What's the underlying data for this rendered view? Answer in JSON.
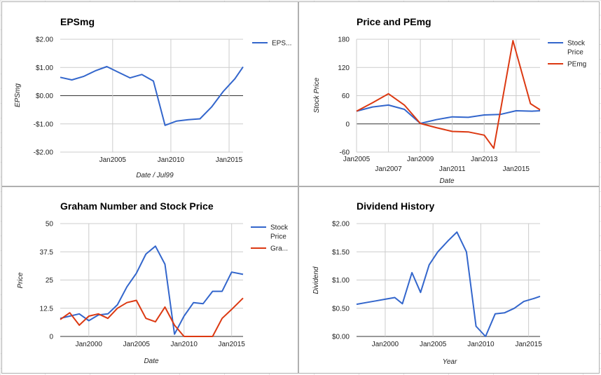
{
  "chart_data": [
    {
      "type": "line",
      "title": "EPSmg",
      "xlabel": "Date / Jul99",
      "ylabel": "EPSmg",
      "ylim": [
        -2,
        2
      ],
      "xlim": [
        2000.5,
        2016.2
      ],
      "yticks": [
        2,
        1,
        0,
        -1,
        -2
      ],
      "ytick_labels": [
        "$2.00",
        "$1.00",
        "$0.00",
        "-$1.00",
        "-$2.00"
      ],
      "xticks": [
        2005,
        2010,
        2015
      ],
      "xtick_labels": [
        "Jan2005",
        "Jan2010",
        "Jan2015"
      ],
      "zero_line": true,
      "legend_position": "right",
      "series": [
        {
          "name": "EPS...",
          "color": "#3366cc",
          "x": [
            2000.5,
            2001.5,
            2002.5,
            2003.5,
            2004.5,
            2005.5,
            2006.5,
            2007.5,
            2008.5,
            2009.5,
            2010.5,
            2011.5,
            2012.5,
            2013.5,
            2014.5,
            2015.5,
            2016.2
          ],
          "y": [
            0.65,
            0.56,
            0.68,
            0.88,
            1.03,
            0.83,
            0.63,
            0.75,
            0.52,
            -1.05,
            -0.9,
            -0.85,
            -0.82,
            -0.4,
            0.15,
            0.6,
            1.02
          ]
        }
      ]
    },
    {
      "type": "line",
      "title": "Price and PEmg",
      "xlabel": "Date",
      "ylabel": "Stock Price",
      "ylim": [
        -60,
        180
      ],
      "xlim": [
        2005,
        2016.5
      ],
      "yticks": [
        180,
        120,
        60,
        0,
        -60
      ],
      "ytick_labels": [
        "180",
        "120",
        "60",
        "0",
        "-60"
      ],
      "xticks": [
        2005,
        2007,
        2009,
        2011,
        2013,
        2015
      ],
      "xtick_labels": [
        "Jan2005",
        "Jan2007",
        "Jan2009",
        "Jan2011",
        "Jan2013",
        "Jan2015"
      ],
      "zero_line": true,
      "legend_position": "right",
      "series": [
        {
          "name": "Stock Price",
          "name_lines": [
            "Stock",
            "Price"
          ],
          "color": "#3366cc",
          "x": [
            2005,
            2006,
            2007,
            2008,
            2009,
            2010,
            2011,
            2012,
            2013,
            2014,
            2015,
            2016,
            2016.5
          ],
          "y": [
            27,
            36,
            40,
            31,
            1,
            9,
            15,
            14,
            19,
            20,
            28,
            27,
            28
          ]
        },
        {
          "name": "PEmg",
          "color": "#dc3912",
          "x": [
            2005,
            2006,
            2007,
            2008,
            2009,
            2010,
            2011,
            2012,
            2013,
            2013.6,
            2014.8,
            2015.9,
            2016.5
          ],
          "y": [
            27,
            45,
            64,
            40,
            1,
            -8,
            -16,
            -17,
            -24,
            -52,
            177,
            43,
            30
          ]
        }
      ]
    },
    {
      "type": "line",
      "title": "Graham Number and Stock Price",
      "xlabel": "Date",
      "ylabel": "Price",
      "ylim": [
        0,
        50
      ],
      "xlim": [
        1997,
        2016.2
      ],
      "yticks": [
        50,
        37.5,
        25,
        12.5,
        0
      ],
      "ytick_labels": [
        "50",
        "37.5",
        "25",
        "12.5",
        "0"
      ],
      "xticks": [
        2000,
        2005,
        2010,
        2015
      ],
      "xtick_labels": [
        "Jan2000",
        "Jan2005",
        "Jan2010",
        "Jan2015"
      ],
      "zero_line": false,
      "legend_position": "right",
      "series": [
        {
          "name": "Stock Price",
          "name_lines": [
            "Stock",
            "Price"
          ],
          "color": "#3366cc",
          "x": [
            1997,
            1998,
            1999,
            2000,
            2001,
            2002,
            2003,
            2004,
            2005,
            2006,
            2007,
            2008,
            2009,
            2010,
            2011,
            2012,
            2013,
            2014,
            2015,
            2016.2
          ],
          "y": [
            8,
            9,
            10,
            7,
            9.5,
            10,
            14,
            22,
            28,
            36.5,
            40,
            32,
            1,
            9,
            15,
            14.5,
            20,
            20,
            28.5,
            27.5
          ]
        },
        {
          "name": "Gra...",
          "color": "#dc3912",
          "x": [
            1997,
            1998,
            1999,
            2000,
            2001,
            2002,
            2003,
            2004,
            2005,
            2006,
            2007,
            2008,
            2009,
            2010,
            2011,
            2012,
            2013,
            2014,
            2015,
            2016.2
          ],
          "y": [
            7.5,
            10.5,
            5,
            9,
            10,
            8,
            12.5,
            15,
            16,
            8,
            6.5,
            13,
            5,
            0,
            0,
            0,
            0,
            8,
            12,
            17
          ]
        }
      ]
    },
    {
      "type": "line",
      "title": "Dividend History",
      "xlabel": "Year",
      "ylabel": "Dividend",
      "ylim": [
        0,
        2
      ],
      "xlim": [
        1997,
        2016.2
      ],
      "yticks": [
        2,
        1.5,
        1,
        0.5,
        0
      ],
      "ytick_labels": [
        "$2.00",
        "$1.50",
        "$1.00",
        "$0.50",
        "$0.00"
      ],
      "xticks": [
        2000,
        2005,
        2010,
        2015
      ],
      "xtick_labels": [
        "Jan2000",
        "Jan2005",
        "Jan2010",
        "Jan2015"
      ],
      "zero_line": false,
      "legend_position": "none",
      "series": [
        {
          "name": "",
          "color": "#3366cc",
          "x": [
            1997,
            1998,
            1999,
            2000,
            2001,
            2001.8,
            2002.8,
            2003.7,
            2004.6,
            2005.5,
            2006.6,
            2007.5,
            2008.5,
            2009.5,
            2010.5,
            2011.5,
            2012.5,
            2013.5,
            2014.5,
            2015.5,
            2016.2
          ],
          "y": [
            0.57,
            0.6,
            0.63,
            0.66,
            0.69,
            0.58,
            1.13,
            0.78,
            1.27,
            1.5,
            1.7,
            1.85,
            1.5,
            0.18,
            0.0,
            0.4,
            0.42,
            0.5,
            0.62,
            0.67,
            0.71
          ]
        }
      ]
    }
  ]
}
